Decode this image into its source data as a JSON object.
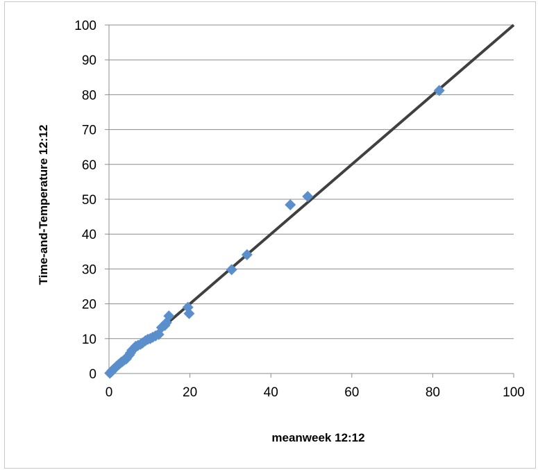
{
  "chart_data": {
    "type": "scatter",
    "title": "",
    "xlabel": "meanweek 12:12",
    "ylabel": "Time-and-Temperature 12:12",
    "xlim": [
      0,
      100
    ],
    "ylim": [
      0,
      100
    ],
    "xticks": [
      0,
      20,
      40,
      60,
      80,
      100
    ],
    "yticks": [
      0,
      10,
      20,
      30,
      40,
      50,
      60,
      70,
      80,
      90,
      100
    ],
    "grid": "horizontal",
    "legend": "none",
    "colors": {
      "marker": "#5b8fcb",
      "reference_line": "#404040",
      "gridline": "#8c8c8c",
      "axis": "#8c8c8c"
    },
    "reference_line": {
      "x": [
        0,
        100
      ],
      "y": [
        0,
        100
      ]
    },
    "series": [
      {
        "marker": "diamond",
        "points": [
          [
            0.2,
            0.1
          ],
          [
            0.4,
            0.3
          ],
          [
            0.6,
            0.5
          ],
          [
            0.8,
            0.9
          ],
          [
            1.0,
            1.1
          ],
          [
            1.3,
            1.4
          ],
          [
            1.5,
            1.6
          ],
          [
            1.8,
            2.0
          ],
          [
            2.1,
            2.3
          ],
          [
            2.4,
            2.6
          ],
          [
            2.7,
            2.9
          ],
          [
            3.0,
            3.2
          ],
          [
            3.3,
            3.4
          ],
          [
            3.7,
            3.8
          ],
          [
            4.0,
            4.1
          ],
          [
            4.3,
            4.2
          ],
          [
            4.6,
            4.8
          ],
          [
            5.0,
            5.3
          ],
          [
            5.3,
            5.9
          ],
          [
            5.7,
            6.7
          ],
          [
            6.2,
            7.2
          ],
          [
            6.6,
            7.8
          ],
          [
            7.2,
            8.1
          ],
          [
            7.8,
            8.4
          ],
          [
            8.3,
            8.8
          ],
          [
            9.0,
            9.4
          ],
          [
            9.6,
            9.8
          ],
          [
            10.2,
            10.0
          ],
          [
            10.8,
            10.4
          ],
          [
            11.5,
            10.8
          ],
          [
            12.3,
            11.2
          ],
          [
            13.0,
            13.2
          ],
          [
            13.8,
            13.8
          ],
          [
            14.2,
            14.6
          ],
          [
            14.8,
            16.5
          ],
          [
            19.5,
            19.0
          ],
          [
            19.8,
            17.2
          ],
          [
            30.3,
            29.8
          ],
          [
            34.1,
            34.1
          ],
          [
            44.8,
            48.4
          ],
          [
            49.1,
            50.8
          ],
          [
            81.6,
            81.2
          ]
        ]
      }
    ]
  }
}
